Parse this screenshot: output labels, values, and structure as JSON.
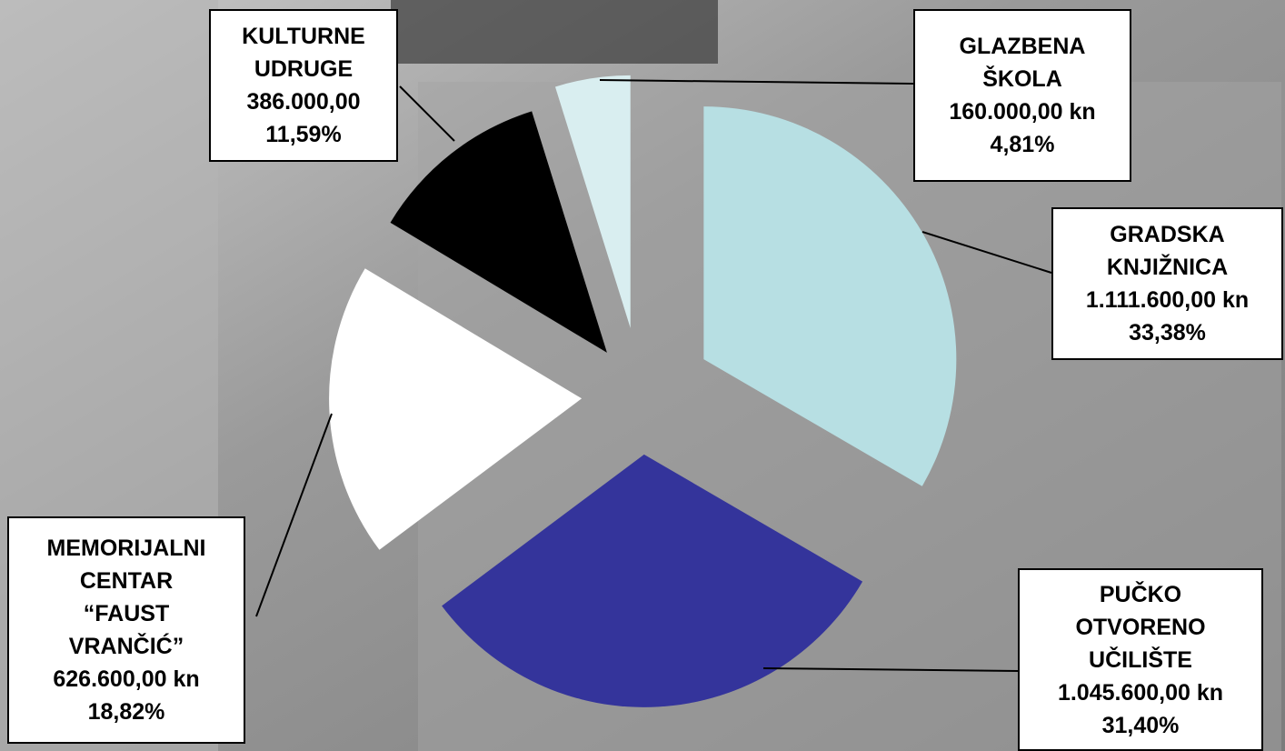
{
  "chart_data": {
    "type": "pie",
    "categories": [
      "GRADSKA KNJIŽNICA",
      "PUČKO OTVORENO UČILIŠTE",
      "MEMORIJALNI CENTAR “FAUST VRANČIĆ”",
      "KULTURNE UDRUGE",
      "GLAZBENA ŠKOLA"
    ],
    "values": [
      33.38,
      31.4,
      18.82,
      11.59,
      4.81
    ],
    "value_labels": [
      "33,38%",
      "31,40%",
      "18,82%",
      "11,59%",
      "4,81%"
    ],
    "amount_labels": [
      "1.111.600,00 kn",
      "1.045.600,00 kn",
      "626.600,00 kn",
      "386.000,00",
      "160.000,00 kn"
    ],
    "colors": [
      "#b7dfe3",
      "#34349b",
      "#ffffff",
      "#000000",
      "#d9eef0"
    ]
  }
}
